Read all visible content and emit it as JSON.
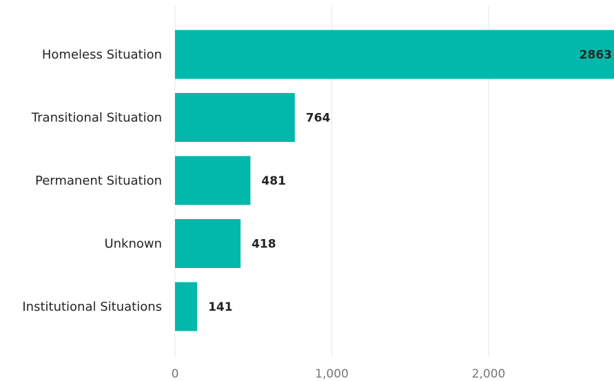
{
  "chart_data": {
    "type": "bar",
    "orientation": "horizontal",
    "title": "",
    "xlabel": "",
    "ylabel": "",
    "categories": [
      "Homeless Situation",
      "Transitional Situation",
      "Permanent Situation",
      "Unknown",
      "Institutional Situations"
    ],
    "values": [
      2863,
      764,
      481,
      418,
      141
    ],
    "data_labels": [
      "2863",
      "764",
      "481",
      "418",
      "141"
    ],
    "x_ticks": [
      0,
      1000,
      2000
    ],
    "x_tick_labels": [
      "0",
      "1,000",
      "2,000"
    ],
    "xlim": [
      0,
      2800
    ],
    "grid": true,
    "legend": "none",
    "colors": {
      "bar": "#01B8AA"
    }
  }
}
